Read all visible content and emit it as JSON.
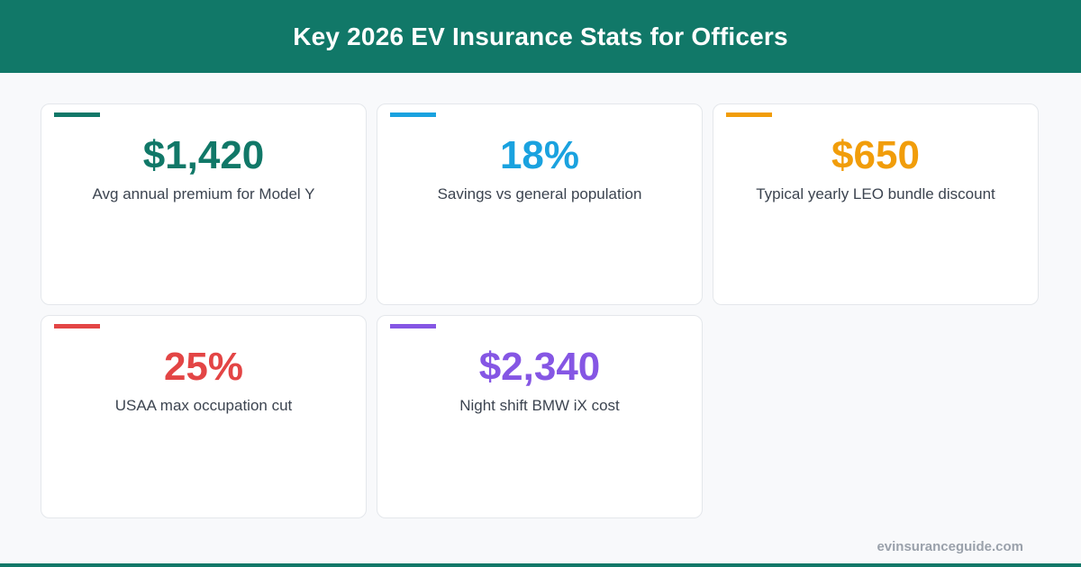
{
  "header": {
    "title": "Key 2026 EV Insurance Stats for Officers"
  },
  "cards": [
    {
      "value": "$1,420",
      "label": "Avg annual premium for Model Y",
      "color": "#117868"
    },
    {
      "value": "18%",
      "label": "Savings vs general population",
      "color": "#1aa2df"
    },
    {
      "value": "$650",
      "label": "Typical yearly LEO bundle discount",
      "color": "#f19d0a"
    },
    {
      "value": "25%",
      "label": "USAA max occupation cut",
      "color": "#e34545"
    },
    {
      "value": "$2,340",
      "label": "Night shift BMW iX cost",
      "color": "#8556e4"
    }
  ],
  "footer": {
    "site": "evinsuranceguide.com"
  }
}
